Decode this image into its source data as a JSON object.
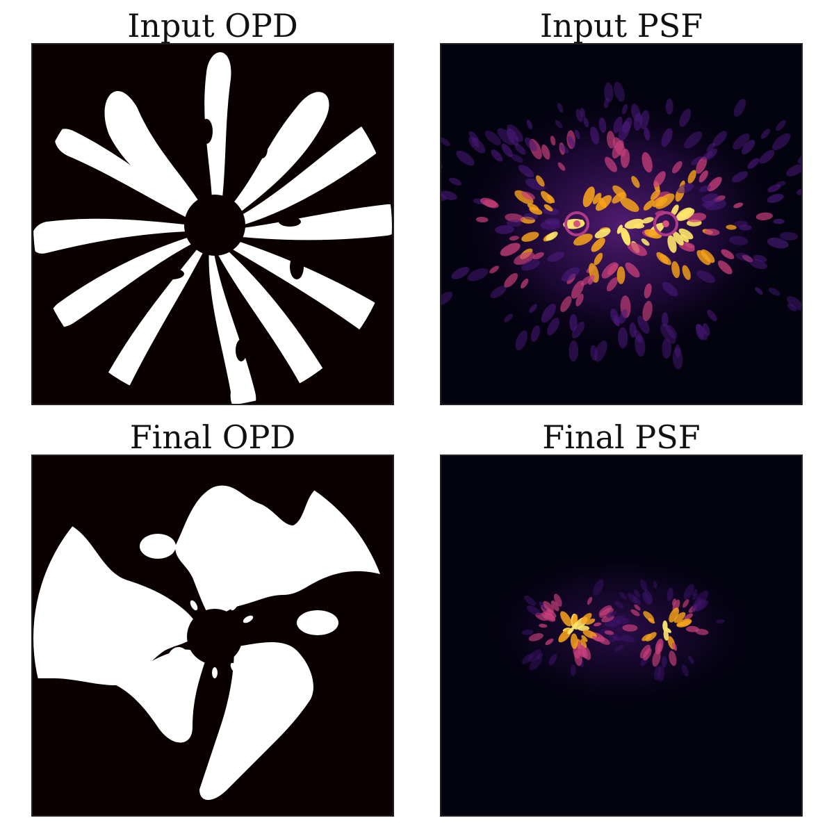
{
  "figure": {
    "panels": [
      {
        "id": "input-opd",
        "title": "Input OPD",
        "kind": "opd",
        "variant": "input"
      },
      {
        "id": "input-psf",
        "title": "Input PSF",
        "kind": "psf",
        "variant": "input"
      },
      {
        "id": "final-opd",
        "title": "Final OPD",
        "kind": "opd",
        "variant": "final"
      },
      {
        "id": "final-psf",
        "title": "Final PSF",
        "kind": "psf",
        "variant": "final"
      }
    ]
  },
  "chart_data": [
    {
      "type": "heatmap",
      "title": "Input OPD",
      "colormap": "hot-binary",
      "axes": "off"
    },
    {
      "type": "heatmap",
      "title": "Input PSF",
      "colormap": "inferno",
      "axes": "off"
    },
    {
      "type": "heatmap",
      "title": "Final OPD",
      "colormap": "hot-binary",
      "axes": "off"
    },
    {
      "type": "heatmap",
      "title": "Final PSF",
      "colormap": "inferno",
      "axes": "off"
    }
  ],
  "colors": {
    "opd_dark": "#0b0000",
    "opd_light": "#ffffff",
    "psf_background": "#03020f",
    "psf_dim": "#4a1a7a",
    "psf_mid": "#c8407a",
    "psf_bright": "#f6a21a",
    "psf_peak": "#fce36a"
  }
}
